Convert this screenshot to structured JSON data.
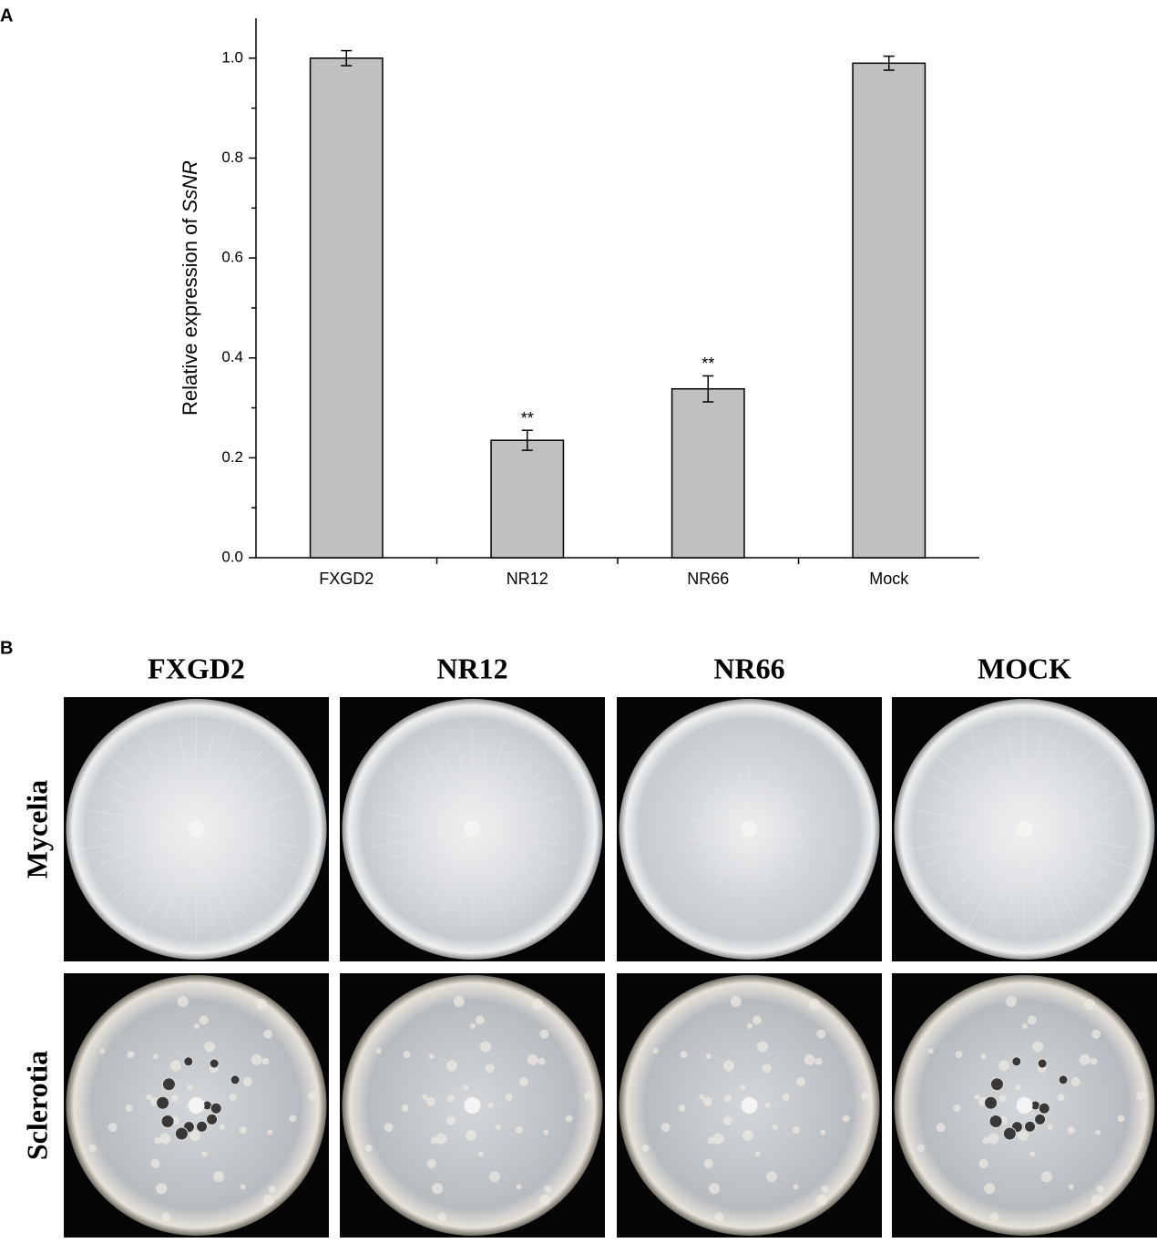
{
  "panel_labels": [
    "A",
    "B"
  ],
  "chart_data": {
    "type": "bar",
    "y_label": [
      "Relative expression of",
      "SsNR"
    ],
    "categories": [
      "FXGD2",
      "NR12",
      "NR66",
      "Mock"
    ],
    "values": [
      1.0,
      0.235,
      0.338,
      0.99
    ],
    "errors": [
      0.015,
      0.02,
      0.026,
      0.014
    ],
    "significance": [
      null,
      "**",
      "**",
      null
    ],
    "color": "#c0c0c0",
    "ylim": [
      0,
      1.08
    ],
    "yticks": [
      {
        "value": 0,
        "label": "0.0"
      },
      0.2,
      0.4,
      0.6,
      0.8,
      {
        "value": 1,
        "label": "1.0"
      }
    ],
    "minor_yticks": [
      0.1,
      0.3,
      0.5,
      0.7,
      0.9
    ]
  },
  "photos": {
    "columns": [
      "FXGD2",
      "NR12",
      "NR66",
      "MOCK"
    ],
    "rows": [
      "Mycelia",
      "Sclerotia"
    ]
  }
}
